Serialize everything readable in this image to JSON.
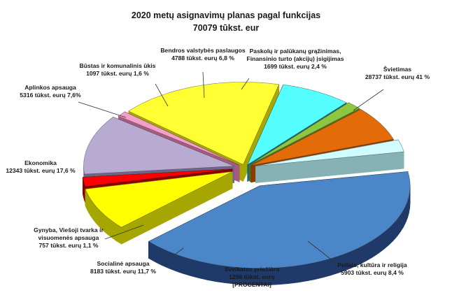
{
  "chart_data": {
    "type": "pie",
    "title": "2020 metų asignavimų planas pagal funkcijas",
    "subtitle": "70079 tūkst. eur",
    "start_angle_deg": -10,
    "slices": [
      {
        "id": "svietimas",
        "value": 41.0,
        "color": "#4a86c8",
        "side_color": "#1f3a68",
        "label_lines": [
          "Švietimas",
          "28737 tūkst. eurų 41 %"
        ]
      },
      {
        "id": "poilsis",
        "value": 8.4,
        "color": "#ffff00",
        "side_color": "#a6a600",
        "label_lines": [
          "Poilsis, kultūra ir religija",
          "5903 tūkst. eurų  8,4 %"
        ]
      },
      {
        "id": "sveikatos",
        "value": 1.8,
        "color": "#ff0000",
        "side_color": "#8c0000",
        "label_lines": [
          "Sveikatos priežiūra",
          "1256 tūkst. eurų",
          "[PROCENTAI]"
        ]
      },
      {
        "id": "socialine",
        "value": 11.7,
        "color": "#b8abd2",
        "side_color": "#6f6589",
        "label_lines": [
          "Socialinė apsauga",
          "8183 tūkst. eurų 11,7 %"
        ]
      },
      {
        "id": "gynyba",
        "value": 1.1,
        "color": "#f2a0c8",
        "side_color": "#a85a80",
        "label_lines": [
          "Gynyba, Viešoji tvarka ir",
          "visuomenės apsauga",
          "757 tūkst. eurų 1,1 %"
        ]
      },
      {
        "id": "ekonomika",
        "value": 17.6,
        "color": "#ffff33",
        "side_color": "#a8a800",
        "label_lines": [
          "Ekonomika",
          "12343 tūkst. eurų 17,6 %"
        ]
      },
      {
        "id": "aplinkos",
        "value": 7.6,
        "color": "#55ffff",
        "side_color": "#1d6a6a",
        "label_lines": [
          "Aplinkos apsauga",
          "5316 tūkst. eurų 7,6%"
        ]
      },
      {
        "id": "bustas",
        "value": 1.6,
        "color": "#8dc63f",
        "side_color": "#4b7a1d",
        "label_lines": [
          "Būstas ir komunalinis ūkis",
          "1097 tūkst. eurų  1,6 %"
        ]
      },
      {
        "id": "bendros",
        "value": 6.8,
        "color": "#e36c09",
        "side_color": "#8a3b00",
        "label_lines": [
          "Bendros valstybės paslaugos",
          "4788 tūkst. eurų    6,8 %"
        ]
      },
      {
        "id": "paskolu",
        "value": 2.4,
        "color": "#d0fbff",
        "side_color": "#86b2b6",
        "label_lines": [
          "Paskolų ir palūkanų grąžinimas,",
          "Finansinio turto (akcijų) įsigijimas",
          "1699 tūkst. eurų 2,4 %"
        ]
      }
    ]
  }
}
